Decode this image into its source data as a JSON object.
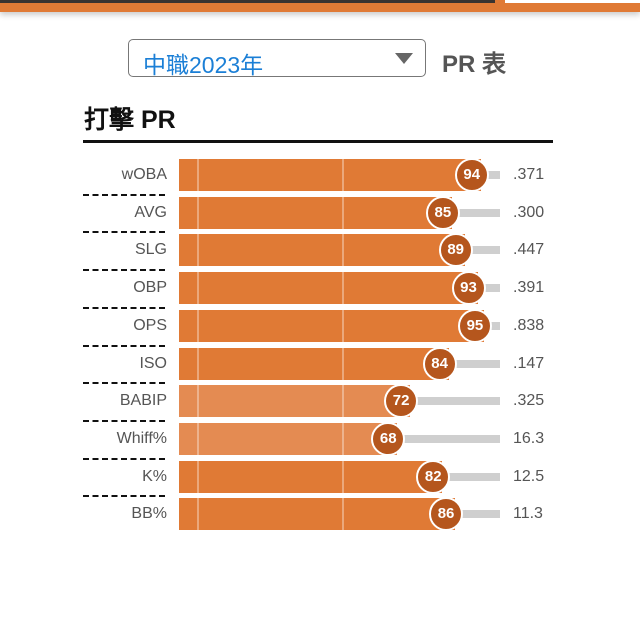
{
  "header": {
    "league_select": "中職2023年",
    "pr_label": "PR 表"
  },
  "section_title": "打擊 PR",
  "colors": {
    "bar_high": "#e07a35",
    "bar_low": "#e48b52",
    "circle": "#b5561d",
    "track": "#cfcfcf"
  },
  "chart_data": {
    "type": "bar",
    "orientation": "horizontal",
    "xlim": [
      0,
      100
    ],
    "categories": [
      "wOBA",
      "AVG",
      "SLG",
      "OBP",
      "OPS",
      "ISO",
      "BABIP",
      "Whiff%",
      "K%",
      "BB%"
    ],
    "values": [
      94,
      85,
      89,
      93,
      95,
      84,
      72,
      68,
      82,
      86
    ],
    "stat_values": [
      ".371",
      ".300",
      ".447",
      ".391",
      ".838",
      ".147",
      ".325",
      "16.3",
      "12.5",
      "11.3"
    ]
  }
}
